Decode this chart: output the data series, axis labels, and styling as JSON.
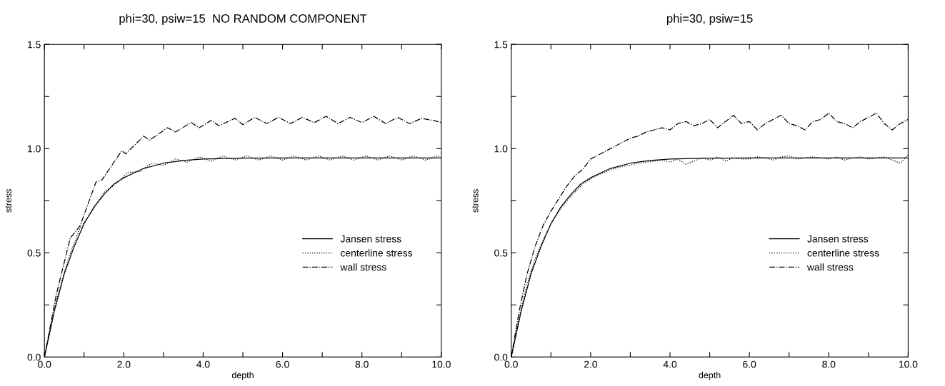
{
  "chart_data": [
    {
      "type": "line",
      "title": "phi=30, psiw=15  NO RANDOM COMPONENT",
      "xlabel": "depth",
      "ylabel": "stress",
      "xlim": [
        0,
        10
      ],
      "ylim": [
        0,
        1.5
      ],
      "xticks": [
        {
          "value": 0,
          "label": "0.0"
        },
        {
          "value": 1,
          "label": null
        },
        {
          "value": 2,
          "label": "2.0"
        },
        {
          "value": 3,
          "label": null
        },
        {
          "value": 4,
          "label": "4.0"
        },
        {
          "value": 5,
          "label": null
        },
        {
          "value": 6,
          "label": "6.0"
        },
        {
          "value": 7,
          "label": null
        },
        {
          "value": 8,
          "label": "8.0"
        },
        {
          "value": 9,
          "label": null
        },
        {
          "value": 10,
          "label": "10.0"
        }
      ],
      "yticks": [
        {
          "value": 0,
          "label": "0.0"
        },
        {
          "value": 0.25,
          "label": null
        },
        {
          "value": 0.5,
          "label": "0.5"
        },
        {
          "value": 0.75,
          "label": null
        },
        {
          "value": 1.0,
          "label": "1.0"
        },
        {
          "value": 1.25,
          "label": null
        },
        {
          "value": 1.5,
          "label": "1.5"
        }
      ],
      "grid": false,
      "legend": "right",
      "series": [
        {
          "name": "Jansen stress",
          "color": "#000000",
          "line_style": "solid",
          "x": [
            0,
            0.25,
            0.5,
            0.75,
            1,
            1.25,
            1.5,
            1.75,
            2,
            2.5,
            3,
            3.5,
            4,
            5,
            6,
            7,
            8,
            9,
            10
          ],
          "values": [
            0,
            0.22,
            0.4,
            0.53,
            0.64,
            0.72,
            0.78,
            0.83,
            0.86,
            0.905,
            0.93,
            0.943,
            0.95,
            0.954,
            0.955,
            0.955,
            0.955,
            0.955,
            0.955
          ]
        },
        {
          "name": "centerline stress",
          "color": "#000000",
          "line_style": "dotted",
          "x": [
            0,
            0.3,
            0.6,
            0.9,
            1.2,
            1.5,
            1.8,
            2.1,
            2.4,
            2.7,
            3.0,
            3.3,
            3.6,
            3.9,
            4.2,
            4.5,
            4.8,
            5.1,
            5.4,
            5.7,
            6.0,
            6.3,
            6.6,
            6.9,
            7.2,
            7.5,
            7.8,
            8.1,
            8.4,
            8.7,
            9.0,
            9.3,
            9.6,
            9.9,
            10
          ],
          "values": [
            0,
            0.27,
            0.47,
            0.62,
            0.7,
            0.79,
            0.83,
            0.885,
            0.89,
            0.93,
            0.92,
            0.95,
            0.935,
            0.96,
            0.94,
            0.965,
            0.945,
            0.965,
            0.945,
            0.965,
            0.945,
            0.965,
            0.945,
            0.965,
            0.945,
            0.965,
            0.945,
            0.965,
            0.945,
            0.965,
            0.945,
            0.965,
            0.945,
            0.965,
            0.96
          ]
        },
        {
          "name": "wall stress",
          "color": "#000000",
          "line_style": "dashdot",
          "x": [
            0,
            0.3,
            0.65,
            0.9,
            1.3,
            1.45,
            1.95,
            2.05,
            2.5,
            2.65,
            3.1,
            3.3,
            3.7,
            3.9,
            4.2,
            4.4,
            4.8,
            5.0,
            5.3,
            5.6,
            5.9,
            6.2,
            6.5,
            6.8,
            7.1,
            7.4,
            7.7,
            8.0,
            8.3,
            8.6,
            8.9,
            9.2,
            9.5,
            9.8,
            10
          ],
          "values": [
            0,
            0.3,
            0.57,
            0.63,
            0.84,
            0.85,
            0.99,
            0.975,
            1.06,
            1.04,
            1.1,
            1.08,
            1.125,
            1.1,
            1.135,
            1.11,
            1.145,
            1.115,
            1.15,
            1.12,
            1.15,
            1.12,
            1.15,
            1.125,
            1.155,
            1.12,
            1.15,
            1.125,
            1.155,
            1.12,
            1.15,
            1.12,
            1.145,
            1.135,
            1.125
          ]
        }
      ]
    },
    {
      "type": "line",
      "title": "phi=30, psiw=15",
      "xlabel": "depth",
      "ylabel": "stress",
      "xlim": [
        0,
        10
      ],
      "ylim": [
        0,
        1.5
      ],
      "xticks": [
        {
          "value": 0,
          "label": "0.0"
        },
        {
          "value": 1,
          "label": null
        },
        {
          "value": 2,
          "label": "2.0"
        },
        {
          "value": 3,
          "label": null
        },
        {
          "value": 4,
          "label": "4.0"
        },
        {
          "value": 5,
          "label": null
        },
        {
          "value": 6,
          "label": "6.0"
        },
        {
          "value": 7,
          "label": null
        },
        {
          "value": 8,
          "label": "8.0"
        },
        {
          "value": 9,
          "label": null
        },
        {
          "value": 10,
          "label": "10.0"
        }
      ],
      "yticks": [
        {
          "value": 0,
          "label": "0.0"
        },
        {
          "value": 0.25,
          "label": null
        },
        {
          "value": 0.5,
          "label": "0.5"
        },
        {
          "value": 0.75,
          "label": null
        },
        {
          "value": 1.0,
          "label": "1.0"
        },
        {
          "value": 1.25,
          "label": null
        },
        {
          "value": 1.5,
          "label": "1.5"
        }
      ],
      "grid": false,
      "legend": "right",
      "series": [
        {
          "name": "Jansen stress",
          "color": "#000000",
          "line_style": "solid",
          "x": [
            0,
            0.25,
            0.5,
            0.75,
            1,
            1.25,
            1.5,
            1.75,
            2,
            2.5,
            3,
            3.5,
            4,
            5,
            6,
            7,
            8,
            9,
            10
          ],
          "values": [
            0,
            0.22,
            0.4,
            0.53,
            0.64,
            0.72,
            0.78,
            0.83,
            0.86,
            0.905,
            0.93,
            0.943,
            0.95,
            0.954,
            0.955,
            0.955,
            0.955,
            0.955,
            0.955
          ]
        },
        {
          "name": "centerline stress",
          "color": "#000000",
          "line_style": "dotted",
          "x": [
            0,
            0.2,
            0.4,
            0.6,
            0.8,
            1.0,
            1.2,
            1.4,
            1.6,
            1.8,
            2.0,
            2.2,
            2.4,
            2.6,
            2.8,
            3.0,
            3.2,
            3.4,
            3.6,
            3.8,
            4.0,
            4.2,
            4.4,
            4.6,
            4.8,
            5.0,
            5.2,
            5.4,
            5.6,
            5.8,
            6.0,
            6.2,
            6.4,
            6.6,
            6.8,
            7.0,
            7.2,
            7.4,
            7.6,
            7.8,
            8.0,
            8.2,
            8.4,
            8.6,
            8.8,
            9.0,
            9.2,
            9.4,
            9.6,
            9.8,
            10.0
          ],
          "values": [
            0,
            0.19,
            0.35,
            0.47,
            0.56,
            0.64,
            0.7,
            0.75,
            0.79,
            0.83,
            0.855,
            0.875,
            0.89,
            0.905,
            0.915,
            0.92,
            0.93,
            0.935,
            0.94,
            0.945,
            0.935,
            0.95,
            0.925,
            0.94,
            0.955,
            0.945,
            0.96,
            0.94,
            0.955,
            0.95,
            0.95,
            0.96,
            0.955,
            0.945,
            0.96,
            0.965,
            0.95,
            0.955,
            0.96,
            0.955,
            0.95,
            0.96,
            0.945,
            0.955,
            0.96,
            0.95,
            0.955,
            0.96,
            0.945,
            0.93,
            0.97
          ]
        },
        {
          "name": "wall stress",
          "color": "#000000",
          "line_style": "dashdot",
          "x": [
            0,
            0.2,
            0.4,
            0.6,
            0.8,
            1.0,
            1.2,
            1.4,
            1.6,
            1.8,
            2.0,
            2.2,
            2.4,
            2.6,
            2.8,
            3.0,
            3.2,
            3.4,
            3.6,
            3.8,
            4.0,
            4.2,
            4.4,
            4.6,
            4.8,
            5.0,
            5.2,
            5.4,
            5.6,
            5.8,
            6.0,
            6.2,
            6.4,
            6.6,
            6.8,
            7.0,
            7.2,
            7.4,
            7.6,
            7.8,
            8.0,
            8.2,
            8.4,
            8.6,
            8.8,
            9.0,
            9.2,
            9.4,
            9.6,
            9.8,
            10.0
          ],
          "values": [
            0,
            0.22,
            0.4,
            0.53,
            0.63,
            0.7,
            0.76,
            0.82,
            0.87,
            0.9,
            0.95,
            0.97,
            0.99,
            1.01,
            1.03,
            1.05,
            1.06,
            1.08,
            1.09,
            1.1,
            1.09,
            1.12,
            1.13,
            1.11,
            1.12,
            1.14,
            1.1,
            1.13,
            1.16,
            1.12,
            1.13,
            1.09,
            1.12,
            1.14,
            1.16,
            1.12,
            1.11,
            1.09,
            1.13,
            1.14,
            1.17,
            1.13,
            1.12,
            1.1,
            1.13,
            1.15,
            1.17,
            1.12,
            1.09,
            1.12,
            1.14
          ]
        }
      ]
    }
  ]
}
